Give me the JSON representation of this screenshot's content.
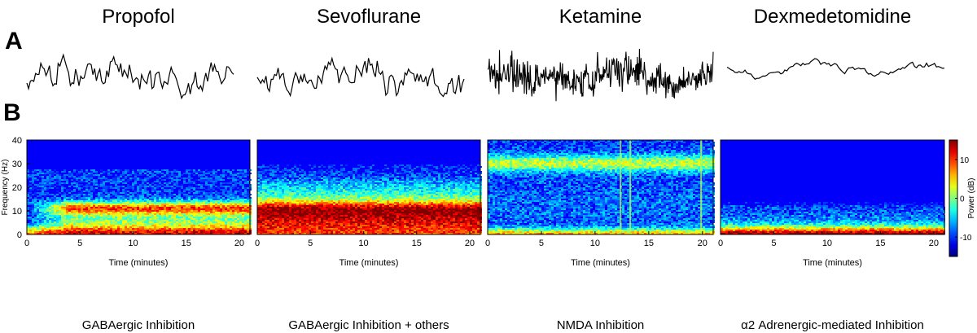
{
  "panel_labels": [
    "A",
    "B"
  ],
  "drugs": [
    {
      "name": "Propofol",
      "mechanism": "GABAergic Inhibition",
      "trace_style": "large_slow",
      "pattern": "propofol"
    },
    {
      "name": "Sevoflurane",
      "mechanism": "GABAergic Inhibition + others",
      "trace_style": "large_slow",
      "pattern": "sevoflurane"
    },
    {
      "name": "Ketamine",
      "mechanism": "NMDA Inhibition",
      "trace_style": "fast_dense",
      "pattern": "ketamine"
    },
    {
      "name": "Dexmedetomidine",
      "mechanism": "α2 Adrenergic-mediated Inhibition",
      "trace_style": "slow_small",
      "pattern": "dexmedetomidine"
    }
  ],
  "chart_data": {
    "type": "heatmap",
    "xlabel": "Time (minutes)",
    "ylabel": "Frequency (Hz)",
    "xlim": [
      0,
      21
    ],
    "ylim": [
      0,
      40
    ],
    "x_ticks": [
      0,
      5,
      10,
      15,
      20
    ],
    "y_ticks": [
      0,
      10,
      20,
      30,
      40
    ],
    "colorbar": {
      "label": "Power (dB)",
      "range": [
        -15,
        15
      ],
      "ticks": [
        10,
        0,
        -10
      ],
      "colormap": "jet",
      "colors": [
        "#00008f",
        "#0000ff",
        "#00ffff",
        "#ffff00",
        "#ff0000",
        "#800000"
      ]
    },
    "spectrograms": [
      {
        "drug": "Propofol",
        "features": "alpha band ~10-12 Hz and slow-delta 0-3 Hz high power"
      },
      {
        "drug": "Sevoflurane",
        "features": "broad high power 0-10 Hz, theta/alpha"
      },
      {
        "drug": "Ketamine",
        "features": "gamma band ~27-33 Hz, slow 0-3 Hz"
      },
      {
        "drug": "Dexmedetomidine",
        "features": "low frequency power below ~13 Hz"
      }
    ]
  }
}
